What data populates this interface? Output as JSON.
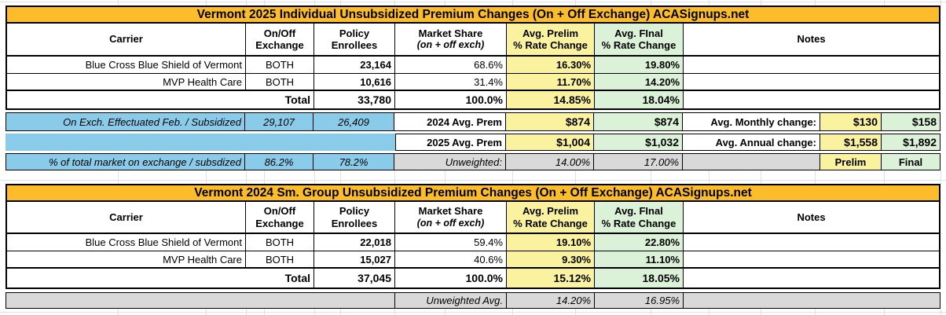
{
  "colors": {
    "title_orange": "#fdbd2b",
    "prelim_yellow": "#fbf2a0",
    "final_green": "#dcf2d8",
    "subsidized_blue": "#8bcbea",
    "unweighted_gray": "#d9d9d9",
    "border_black": "#000000",
    "gridline_gray": "#dce1e6"
  },
  "shared_headers": {
    "carrier": "Carrier",
    "exchange_line1": "On/Off",
    "exchange_line2": "Exchange",
    "enrollees_line1": "Policy",
    "enrollees_line2": "Enrollees",
    "share_line1": "Market Share",
    "share_line2": "(on + off exch)",
    "prelim_line1": "Avg. Prelim",
    "prelim_line2": "% Rate Change",
    "final_line1": "Avg. FInal",
    "final_line2": "% Rate Change",
    "notes": "Notes"
  },
  "individual": {
    "title": "Vermont 2025 Individual Unsubsidized Premium Changes (On + Off Exchange) ACASignups.net",
    "carriers": [
      {
        "name": "Blue Cross Blue Shield of Vermont",
        "exchange": "BOTH",
        "enrollees": "23,164",
        "share": "68.6%",
        "prelim": "16.30%",
        "final": "19.80%",
        "notes": ""
      },
      {
        "name": "MVP Health Care",
        "exchange": "BOTH",
        "enrollees": "10,616",
        "share": "31.4%",
        "prelim": "11.70%",
        "final": "14.20%",
        "notes": ""
      }
    ],
    "total": {
      "label": "Total",
      "enrollees": "33,780",
      "share": "100.0%",
      "prelim": "14.85%",
      "final": "18.04%"
    },
    "subsidized_row": {
      "label": "On Exch. Effectuated Feb. / Subsidized",
      "on_exchange": "29,107",
      "subsidized": "26,409"
    },
    "premiums": {
      "prem_2024_label": "2024 Avg. Prem",
      "prem_2024_prelim": "$874",
      "prem_2024_final": "$874",
      "prem_2025_label": "2025 Avg. Prem",
      "prem_2025_prelim": "$1,004",
      "prem_2025_final": "$1,032",
      "monthly_change_label": "Avg. Monthly change:",
      "monthly_change_prelim": "$130",
      "monthly_change_final": "$158",
      "annual_change_label": "Avg. Annual change:",
      "annual_change_prelim": "$1,558",
      "annual_change_final": "$1,892",
      "col_prelim_label": "Prelim",
      "col_final_label": "Final"
    },
    "pct_market_row": {
      "label": "% of total market on exchange / subsdized",
      "on_exchange": "86.2%",
      "subsidized": "78.2%"
    },
    "unweighted": {
      "label": "Unweighted:",
      "prelim": "14.00%",
      "final": "17.00%"
    }
  },
  "smgroup": {
    "title": "Vermont 2024 Sm. Group Unsubsidized Premium Changes (On + Off Exchange) ACASignups.net",
    "carriers": [
      {
        "name": "Blue Cross Blue Shield of Vermont",
        "exchange": "BOTH",
        "enrollees": "22,018",
        "share": "59.4%",
        "prelim": "19.10%",
        "final": "22.80%",
        "notes": ""
      },
      {
        "name": "MVP Health Care",
        "exchange": "BOTH",
        "enrollees": "15,027",
        "share": "40.6%",
        "prelim": "9.30%",
        "final": "11.10%",
        "notes": ""
      }
    ],
    "total": {
      "label": "Total",
      "enrollees": "37,045",
      "share": "100.0%",
      "prelim": "15.12%",
      "final": "18.05%"
    },
    "unweighted": {
      "label": "Unweighted Avg.",
      "prelim": "14.20%",
      "final": "16.95%"
    }
  }
}
